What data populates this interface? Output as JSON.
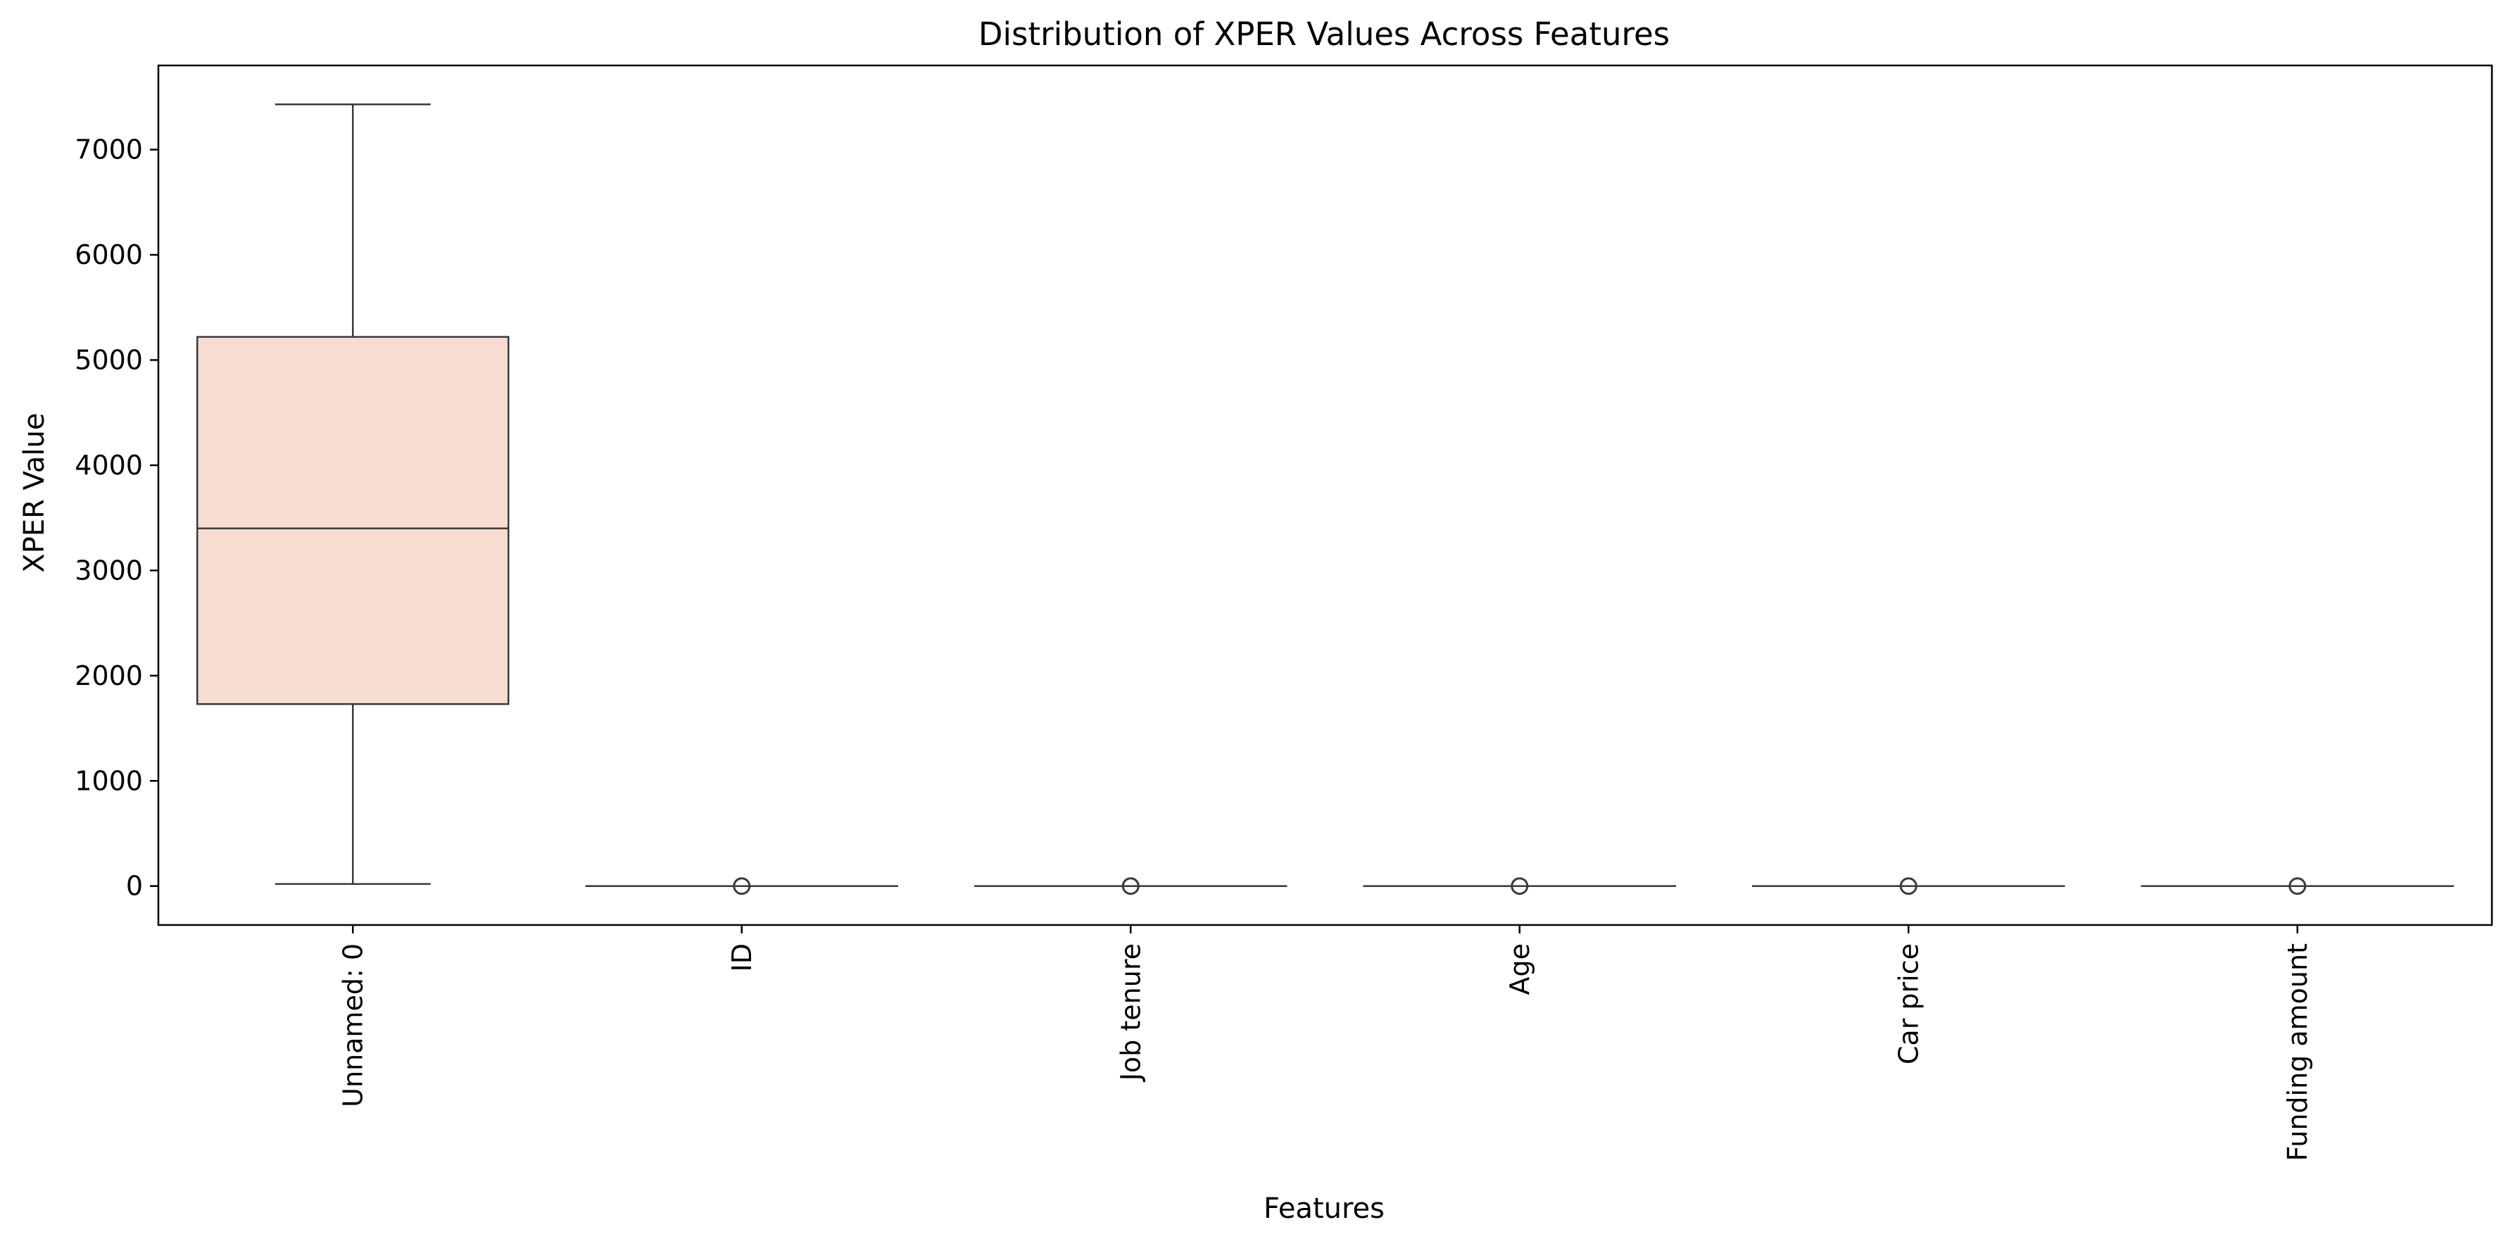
{
  "chart_data": {
    "type": "box",
    "title": "Distribution of XPER Values Across Features",
    "xlabel": "Features",
    "ylabel": "XPER Value",
    "ylim": [
      -370,
      7800
    ],
    "yticks": [
      0,
      1000,
      2000,
      3000,
      4000,
      5000,
      6000,
      7000
    ],
    "grid": false,
    "legend": "none",
    "box_fill": "#f7ddd1",
    "line_color": "#3a3a3a",
    "categories": [
      "Unnamed: 0",
      "ID",
      "Job tenure",
      "Age",
      "Car price",
      "Funding amount"
    ],
    "boxes": [
      {
        "category": "Unnamed: 0",
        "whisker_low": 20,
        "q1": 1730,
        "median": 3400,
        "q3": 5220,
        "whisker_high": 7430,
        "outliers": []
      },
      {
        "category": "ID",
        "whisker_low": 0,
        "q1": 0,
        "median": 0,
        "q3": 0,
        "whisker_high": 0,
        "outliers": [
          0
        ]
      },
      {
        "category": "Job tenure",
        "whisker_low": 0,
        "q1": 0,
        "median": 0,
        "q3": 0,
        "whisker_high": 0,
        "outliers": [
          0
        ]
      },
      {
        "category": "Age",
        "whisker_low": 0,
        "q1": 0,
        "median": 0,
        "q3": 0,
        "whisker_high": 0,
        "outliers": [
          0
        ]
      },
      {
        "category": "Car price",
        "whisker_low": 0,
        "q1": 0,
        "median": 0,
        "q3": 0,
        "whisker_high": 0,
        "outliers": [
          0
        ]
      },
      {
        "category": "Funding amount",
        "whisker_low": 0,
        "q1": 0,
        "median": 0,
        "q3": 0,
        "whisker_high": 0,
        "outliers": [
          0
        ]
      }
    ]
  }
}
